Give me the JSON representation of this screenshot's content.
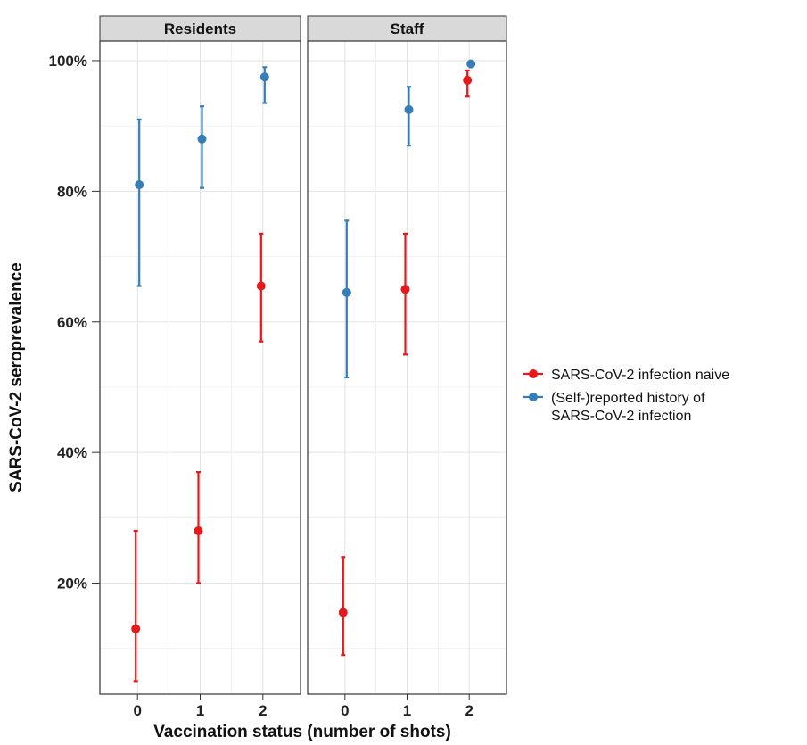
{
  "chart_data": {
    "type": "scatter",
    "facets": [
      "Residents",
      "Staff"
    ],
    "xlabel": "Vaccination status (number of shots)",
    "ylabel": "SARS-CoV-2 seroprevalence",
    "x_ticks": [
      "0",
      "1",
      "2"
    ],
    "y_ticks": [
      "20%",
      "40%",
      "60%",
      "80%",
      "100%"
    ],
    "ylim": [
      3,
      103
    ],
    "grid": true,
    "legend_position": "right",
    "series": [
      {
        "name": "SARS-CoV-2 infection naive",
        "color": "#e41a1c",
        "points": {
          "Residents": [
            {
              "x": 0,
              "y": 13,
              "lower": 5,
              "upper": 28
            },
            {
              "x": 1,
              "y": 28,
              "lower": 20,
              "upper": 37
            },
            {
              "x": 2,
              "y": 65.5,
              "lower": 57,
              "upper": 73.5
            }
          ],
          "Staff": [
            {
              "x": 0,
              "y": 15.5,
              "lower": 9,
              "upper": 24
            },
            {
              "x": 1,
              "y": 65,
              "lower": 55,
              "upper": 73.5
            },
            {
              "x": 2,
              "y": 97,
              "lower": 94.5,
              "upper": 98.5
            }
          ]
        }
      },
      {
        "name": "(Self-)reported history of SARS-CoV-2 infection",
        "color": "#377eb8",
        "points": {
          "Residents": [
            {
              "x": 0,
              "y": 81,
              "lower": 65.5,
              "upper": 91
            },
            {
              "x": 1,
              "y": 88,
              "lower": 80.5,
              "upper": 93
            },
            {
              "x": 2,
              "y": 97.5,
              "lower": 93.5,
              "upper": 99
            }
          ],
          "Staff": [
            {
              "x": 0,
              "y": 64.5,
              "lower": 51.5,
              "upper": 75.5
            },
            {
              "x": 1,
              "y": 92.5,
              "lower": 87,
              "upper": 96
            },
            {
              "x": 2,
              "y": 99.5,
              "lower": 99,
              "upper": 100
            }
          ]
        }
      }
    ]
  },
  "legend": {
    "items": [
      {
        "lines": [
          "SARS-CoV-2 infection naive"
        ]
      },
      {
        "lines": [
          "(Self-)reported history of",
          "SARS-CoV-2 infection"
        ]
      }
    ]
  }
}
